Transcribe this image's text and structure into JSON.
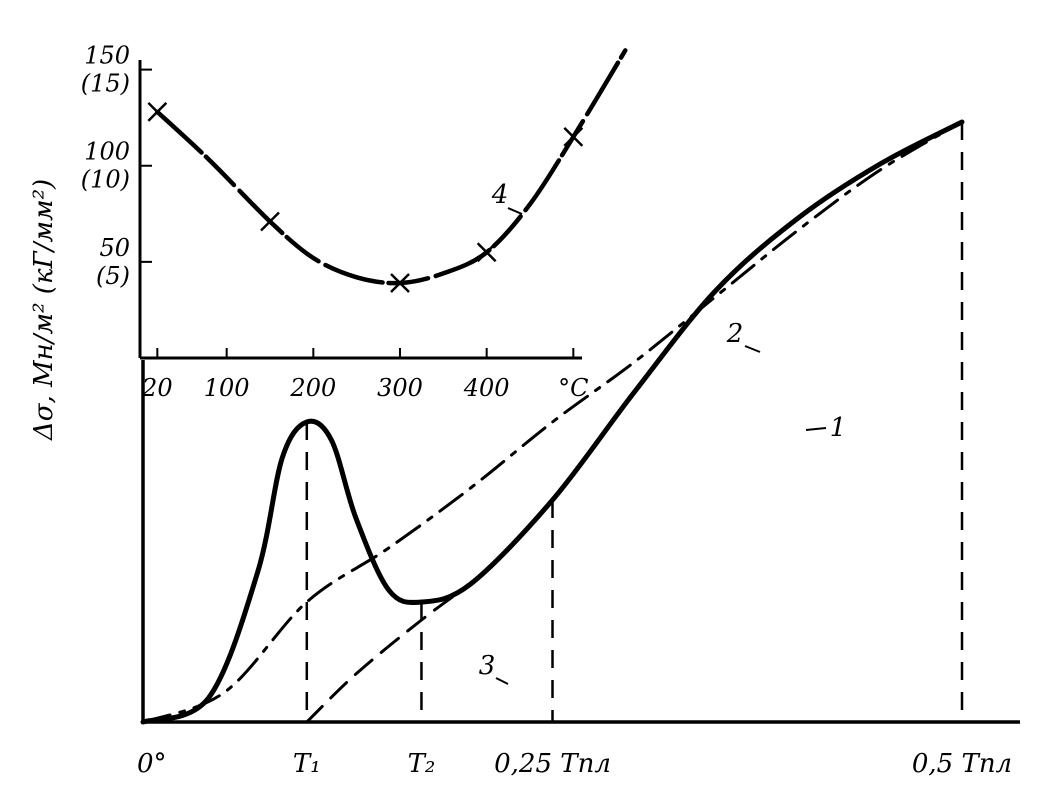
{
  "chart_data": [
    {
      "type": "line",
      "title": "",
      "xlabel": "",
      "ylabel": "",
      "x_ticks": [
        {
          "label": "0°",
          "x": 0
        },
        {
          "label": "T₁",
          "x": 0.1
        },
        {
          "label": "T₂",
          "x": 0.17
        },
        {
          "label": "0,25 Tпл",
          "x": 0.25
        },
        {
          "label": "0,5 Tпл",
          "x": 0.5
        }
      ],
      "xlim": [
        0,
        0.5
      ],
      "ylim": [
        0,
        1.0
      ],
      "series": [
        {
          "name": "1",
          "style": "solid",
          "x": [
            0,
            0.04,
            0.07,
            0.085,
            0.1,
            0.115,
            0.13,
            0.15,
            0.17,
            0.2,
            0.25,
            0.3,
            0.35,
            0.4,
            0.45,
            0.5
          ],
          "values": [
            0,
            0.04,
            0.25,
            0.44,
            0.5,
            0.47,
            0.34,
            0.22,
            0.2,
            0.23,
            0.37,
            0.55,
            0.72,
            0.84,
            0.93,
            1.0
          ]
        },
        {
          "name": "2",
          "style": "dash-dot",
          "x": [
            0,
            0.05,
            0.1,
            0.15,
            0.2,
            0.25,
            0.3,
            0.35,
            0.4,
            0.45,
            0.5
          ],
          "values": [
            0,
            0.05,
            0.2,
            0.29,
            0.39,
            0.5,
            0.6,
            0.71,
            0.82,
            0.92,
            1.0
          ]
        },
        {
          "name": "3",
          "style": "dashed",
          "x": [
            0.1,
            0.13,
            0.17,
            0.2
          ],
          "values": [
            0,
            0.08,
            0.17,
            0.23
          ]
        }
      ],
      "verticals": [
        0.1,
        0.17,
        0.25,
        0.5
      ],
      "curve_labels": [
        "1",
        "2",
        "3"
      ]
    },
    {
      "type": "line",
      "title": "",
      "ylabel": "Δσ, Мн/м² (кГ/мм²)",
      "x_tick_labels": [
        "20",
        "100",
        "200",
        "300",
        "400",
        "°C"
      ],
      "x_ticks": [
        20,
        100,
        200,
        300,
        400,
        500
      ],
      "xlim": [
        0,
        510
      ],
      "y_tick_labels": [
        {
          "label": "150",
          "sub": "(15)",
          "y": 150
        },
        {
          "label": "100",
          "sub": "(10)",
          "y": 100
        },
        {
          "label": "50",
          "sub": "(5)",
          "y": 50
        }
      ],
      "ylim": [
        0,
        155
      ],
      "series": [
        {
          "name": "4",
          "points": [
            [
              20,
              128
            ],
            [
              150,
              71
            ],
            [
              300,
              39
            ],
            [
              400,
              55
            ],
            [
              500,
              115
            ]
          ],
          "curve": [
            [
              20,
              128
            ],
            [
              80,
              103
            ],
            [
              150,
              71
            ],
            [
              200,
              52
            ],
            [
              250,
              42
            ],
            [
              300,
              39
            ],
            [
              350,
              44
            ],
            [
              400,
              55
            ],
            [
              450,
              80
            ],
            [
              500,
              115
            ],
            [
              560,
              160
            ]
          ]
        }
      ],
      "curve_label": "4"
    }
  ]
}
